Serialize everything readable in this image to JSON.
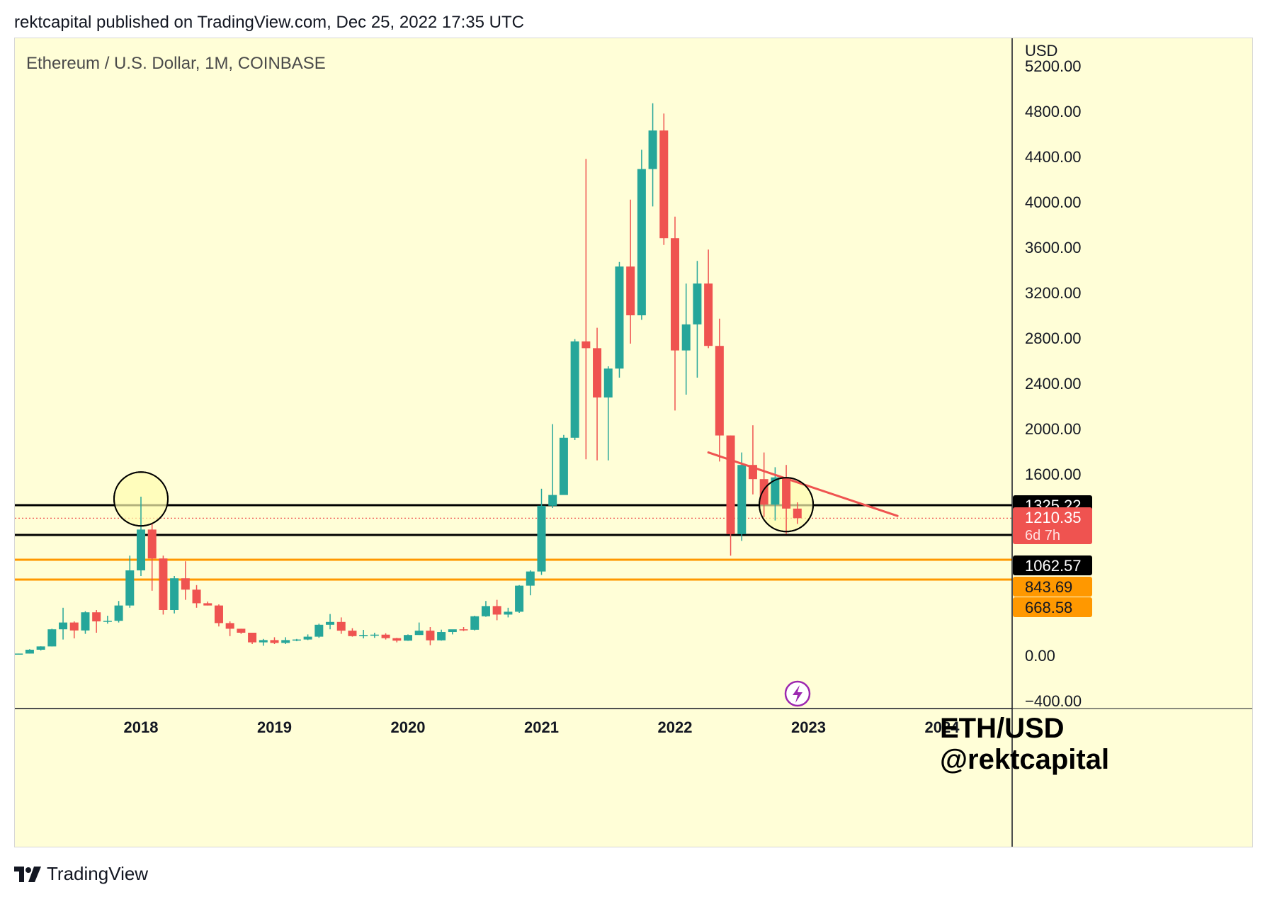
{
  "header": {
    "text": "rektcapital published on TradingView.com, Dec 25, 2022 17:35 UTC"
  },
  "footer": {
    "brand": "TradingView",
    "logo_icon": "tradingview-logo-icon"
  },
  "chart": {
    "symbol_title": "Ethereum / U.S. Dollar, 1M, COINBASE",
    "currency_label": "USD",
    "watermark_line1": "ETH/USD",
    "watermark_line2": "@rektcapital",
    "countdown": "6d 7h",
    "colors": {
      "background": "#fffed7",
      "up": "#26a69a",
      "down": "#ef5350",
      "support_line": "#000000",
      "orange_level": "#ff9800",
      "trendline": "#ef5350",
      "circle_fill": "#fffcb0",
      "lightning": "#9c27b0"
    },
    "icons": {
      "bolt": "lightning-icon"
    }
  },
  "chart_data": {
    "type": "candlestick",
    "symbol": "ETH/USD",
    "timeframe": "1M",
    "exchange": "COINBASE",
    "y_axis": {
      "ticks": [
        -400,
        0,
        400,
        800,
        1200,
        1600,
        2000,
        2400,
        2800,
        3200,
        3600,
        4000,
        4400,
        4800,
        5200
      ],
      "tick_labels": [
        "−400.00",
        "0.00",
        "400.00",
        "800.00",
        "1200.00",
        "1600.00",
        "2000.00",
        "2400.00",
        "2800.00",
        "3200.00",
        "3600.00",
        "4000.00",
        "4400.00",
        "4800.00",
        "5200.00"
      ],
      "range": [
        -400,
        5200
      ]
    },
    "x_axis": {
      "labels": [
        "2018",
        "2019",
        "2020",
        "2021",
        "2022",
        "2023",
        "2024"
      ]
    },
    "price_labels": [
      {
        "value": 1325.22,
        "text": "1325.22",
        "kind": "level-black"
      },
      {
        "value": 1210.35,
        "text": "1210.35",
        "kind": "current"
      },
      {
        "value": 1062.57,
        "text": "1062.57",
        "kind": "level-black"
      },
      {
        "value": 843.69,
        "text": "843.69",
        "kind": "level-orange"
      },
      {
        "value": 668.58,
        "text": "668.58",
        "kind": "level-orange"
      }
    ],
    "horizontal_lines": [
      {
        "value": 1325.22,
        "color": "#000000"
      },
      {
        "value": 1062.57,
        "color": "#000000"
      },
      {
        "value": 843.69,
        "color": "#ff9800"
      },
      {
        "value": 668.58,
        "color": "#ff9800"
      }
    ],
    "current_price_line": 1210.35,
    "trendline": {
      "start": [
        "2022-04",
        1790
      ],
      "end": [
        "2023-09",
        1230
      ]
    },
    "highlight_circles": [
      {
        "date": "2018-01",
        "value": 1380
      },
      {
        "date": "2022-11",
        "value": 1330
      }
    ],
    "candles": [
      {
        "date": "2017-01",
        "open": 8,
        "high": 11,
        "low": 8,
        "close": 10
      },
      {
        "date": "2017-02",
        "open": 10,
        "high": 16,
        "low": 10,
        "close": 16
      },
      {
        "date": "2017-03",
        "open": 16,
        "high": 55,
        "low": 16,
        "close": 50
      },
      {
        "date": "2017-04",
        "open": 50,
        "high": 80,
        "low": 43,
        "close": 79
      },
      {
        "date": "2017-05",
        "open": 79,
        "high": 235,
        "low": 79,
        "close": 230
      },
      {
        "date": "2017-06",
        "open": 230,
        "high": 420,
        "low": 140,
        "close": 290
      },
      {
        "date": "2017-07",
        "open": 290,
        "high": 300,
        "low": 150,
        "close": 220
      },
      {
        "date": "2017-08",
        "open": 220,
        "high": 390,
        "low": 190,
        "close": 380
      },
      {
        "date": "2017-09",
        "open": 380,
        "high": 400,
        "low": 200,
        "close": 300
      },
      {
        "date": "2017-10",
        "open": 300,
        "high": 350,
        "low": 280,
        "close": 305
      },
      {
        "date": "2017-11",
        "open": 305,
        "high": 480,
        "low": 290,
        "close": 440
      },
      {
        "date": "2017-12",
        "open": 440,
        "high": 880,
        "low": 420,
        "close": 750
      },
      {
        "date": "2018-01",
        "open": 750,
        "high": 1400,
        "low": 700,
        "close": 1110
      },
      {
        "date": "2018-02",
        "open": 1110,
        "high": 1160,
        "low": 570,
        "close": 855
      },
      {
        "date": "2018-03",
        "open": 855,
        "high": 880,
        "low": 360,
        "close": 400
      },
      {
        "date": "2018-04",
        "open": 400,
        "high": 700,
        "low": 370,
        "close": 680
      },
      {
        "date": "2018-05",
        "open": 680,
        "high": 830,
        "low": 490,
        "close": 580
      },
      {
        "date": "2018-06",
        "open": 580,
        "high": 620,
        "low": 420,
        "close": 460
      },
      {
        "date": "2018-07",
        "open": 460,
        "high": 475,
        "low": 440,
        "close": 440
      },
      {
        "date": "2018-08",
        "open": 440,
        "high": 450,
        "low": 255,
        "close": 285
      },
      {
        "date": "2018-09",
        "open": 285,
        "high": 300,
        "low": 170,
        "close": 235
      },
      {
        "date": "2018-10",
        "open": 235,
        "high": 235,
        "low": 190,
        "close": 200
      },
      {
        "date": "2018-11",
        "open": 200,
        "high": 200,
        "low": 100,
        "close": 115
      },
      {
        "date": "2018-12",
        "open": 115,
        "high": 145,
        "low": 85,
        "close": 135
      },
      {
        "date": "2019-01",
        "open": 135,
        "high": 160,
        "low": 100,
        "close": 110
      },
      {
        "date": "2019-02",
        "open": 110,
        "high": 160,
        "low": 100,
        "close": 135
      },
      {
        "date": "2019-03",
        "open": 135,
        "high": 145,
        "low": 125,
        "close": 140
      },
      {
        "date": "2019-04",
        "open": 140,
        "high": 185,
        "low": 135,
        "close": 165
      },
      {
        "date": "2019-05",
        "open": 165,
        "high": 280,
        "low": 155,
        "close": 270
      },
      {
        "date": "2019-06",
        "open": 270,
        "high": 365,
        "low": 230,
        "close": 295
      },
      {
        "date": "2019-07",
        "open": 295,
        "high": 335,
        "low": 190,
        "close": 218
      },
      {
        "date": "2019-08",
        "open": 218,
        "high": 240,
        "low": 165,
        "close": 170
      },
      {
        "date": "2019-09",
        "open": 170,
        "high": 225,
        "low": 150,
        "close": 180
      },
      {
        "date": "2019-10",
        "open": 180,
        "high": 200,
        "low": 155,
        "close": 183
      },
      {
        "date": "2019-11",
        "open": 183,
        "high": 195,
        "low": 140,
        "close": 152
      },
      {
        "date": "2019-12",
        "open": 152,
        "high": 155,
        "low": 115,
        "close": 130
      },
      {
        "date": "2020-01",
        "open": 130,
        "high": 185,
        "low": 128,
        "close": 180
      },
      {
        "date": "2020-02",
        "open": 180,
        "high": 290,
        "low": 180,
        "close": 218
      },
      {
        "date": "2020-03",
        "open": 218,
        "high": 250,
        "low": 90,
        "close": 133
      },
      {
        "date": "2020-04",
        "open": 133,
        "high": 227,
        "low": 130,
        "close": 206
      },
      {
        "date": "2020-05",
        "open": 206,
        "high": 215,
        "low": 185,
        "close": 230
      },
      {
        "date": "2020-06",
        "open": 230,
        "high": 250,
        "low": 215,
        "close": 226
      },
      {
        "date": "2020-07",
        "open": 226,
        "high": 350,
        "low": 220,
        "close": 345
      },
      {
        "date": "2020-08",
        "open": 345,
        "high": 480,
        "low": 340,
        "close": 435
      },
      {
        "date": "2020-09",
        "open": 435,
        "high": 490,
        "low": 310,
        "close": 360
      },
      {
        "date": "2020-10",
        "open": 360,
        "high": 420,
        "low": 335,
        "close": 385
      },
      {
        "date": "2020-11",
        "open": 385,
        "high": 620,
        "low": 375,
        "close": 615
      },
      {
        "date": "2020-12",
        "open": 615,
        "high": 750,
        "low": 530,
        "close": 740
      },
      {
        "date": "2021-01",
        "open": 740,
        "high": 1470,
        "low": 710,
        "close": 1320
      },
      {
        "date": "2021-02",
        "open": 1320,
        "high": 2040,
        "low": 1300,
        "close": 1415
      },
      {
        "date": "2021-03",
        "open": 1415,
        "high": 1945,
        "low": 1420,
        "close": 1920
      },
      {
        "date": "2021-04",
        "open": 1920,
        "high": 2790,
        "low": 1900,
        "close": 2770
      },
      {
        "date": "2021-05",
        "open": 2770,
        "high": 4380,
        "low": 1730,
        "close": 2710
      },
      {
        "date": "2021-06",
        "open": 2710,
        "high": 2890,
        "low": 1720,
        "close": 2275
      },
      {
        "date": "2021-07",
        "open": 2275,
        "high": 2550,
        "low": 1720,
        "close": 2530
      },
      {
        "date": "2021-08",
        "open": 2530,
        "high": 3470,
        "low": 2450,
        "close": 3430
      },
      {
        "date": "2021-09",
        "open": 3430,
        "high": 4020,
        "low": 2750,
        "close": 3000
      },
      {
        "date": "2021-10",
        "open": 3000,
        "high": 4460,
        "low": 2960,
        "close": 4290
      },
      {
        "date": "2021-11",
        "open": 4290,
        "high": 4870,
        "low": 3960,
        "close": 4630
      },
      {
        "date": "2021-12",
        "open": 4630,
        "high": 4780,
        "low": 3620,
        "close": 3680
      },
      {
        "date": "2022-01",
        "open": 3680,
        "high": 3870,
        "low": 2160,
        "close": 2690
      },
      {
        "date": "2022-02",
        "open": 2690,
        "high": 3280,
        "low": 2300,
        "close": 2920
      },
      {
        "date": "2022-03",
        "open": 2920,
        "high": 3480,
        "low": 2450,
        "close": 3280
      },
      {
        "date": "2022-04",
        "open": 3280,
        "high": 3580,
        "low": 2710,
        "close": 2730
      },
      {
        "date": "2022-05",
        "open": 2730,
        "high": 2970,
        "low": 1710,
        "close": 1940
      },
      {
        "date": "2022-06",
        "open": 1940,
        "high": 1940,
        "low": 880,
        "close": 1070
      },
      {
        "date": "2022-07",
        "open": 1070,
        "high": 1790,
        "low": 1010,
        "close": 1680
      },
      {
        "date": "2022-08",
        "open": 1680,
        "high": 2030,
        "low": 1420,
        "close": 1555
      },
      {
        "date": "2022-09",
        "open": 1555,
        "high": 1790,
        "low": 1220,
        "close": 1330
      },
      {
        "date": "2022-10",
        "open": 1330,
        "high": 1660,
        "low": 1190,
        "close": 1570
      },
      {
        "date": "2022-11",
        "open": 1570,
        "high": 1680,
        "low": 1070,
        "close": 1295
      },
      {
        "date": "2022-12",
        "open": 1295,
        "high": 1350,
        "low": 1160,
        "close": 1210.35
      }
    ]
  }
}
